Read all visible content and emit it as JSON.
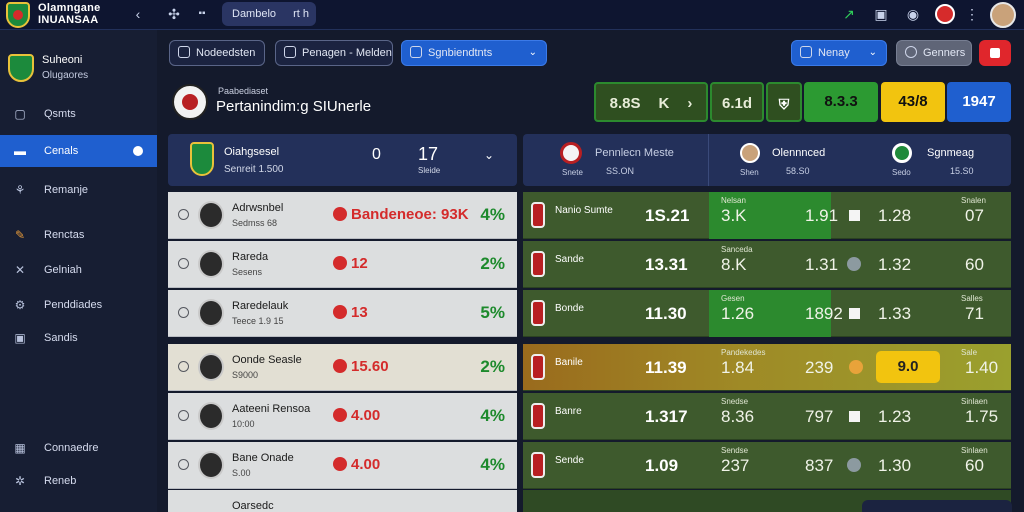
{
  "app": {
    "brand_line1": "Olamngane",
    "brand_line2": "INUANSAA",
    "tab_label": "Dambelo",
    "tab_right": "rt h"
  },
  "sidebar": {
    "team_name": "Suheoni",
    "team_sub": "Olugaores",
    "items": [
      {
        "label": "Qsmts",
        "icon": "square-icon"
      },
      {
        "label": "Cenals",
        "icon": "card-icon",
        "active": true
      },
      {
        "label": "Remanje",
        "icon": "tree-icon"
      },
      {
        "label": "Renctas",
        "icon": "pencil-icon"
      },
      {
        "label": "Gelniah",
        "icon": "cross-icon"
      },
      {
        "label": "Penddiades",
        "icon": "gear-icon"
      },
      {
        "label": "Sandis",
        "icon": "box-icon"
      },
      {
        "label": "Connaedre",
        "icon": "grid-icon"
      },
      {
        "label": "Reneb",
        "icon": "cog-icon"
      }
    ]
  },
  "filters": {
    "f1": "Nodeedsten",
    "f2": "Penagen - Melden",
    "f3": "Sgnbiendtnts",
    "right_select": "Nenay",
    "right_btn": "Genners"
  },
  "header": {
    "small": "Paabediaset",
    "title": "Pertanindim:g SIUnerle",
    "scores": [
      "8.8S",
      "6.1d",
      "8.3.3",
      "43/8",
      "1947"
    ],
    "mid_text": "K"
  },
  "left_header": {
    "team": "Oiahgsesel",
    "team_sub": "Senreit 1.500",
    "score_a": "0",
    "score_b": "17",
    "score_sub": "Sleide"
  },
  "right_header": {
    "teams": [
      {
        "name": "Pennlecn Meste",
        "sub": "SS.ON"
      },
      {
        "name": "Olennnced",
        "sub": "58.S0"
      },
      {
        "name": "Sgnmeag",
        "sub": "15.S0"
      }
    ],
    "labels": [
      "Snete",
      "Shen",
      "Sedo"
    ]
  },
  "rows": [
    {
      "name": "Adrwsnbel",
      "sub": "Sedmss 68",
      "odd": "Bandeneoe: 93K",
      "green": "4%",
      "rteam": "Nanio Sumte",
      "rval": "1S.21",
      "tv1": "Nelsan",
      "v1": "3.K",
      "v2": "1.91",
      "v3": "1.28",
      "v4": "07",
      "tv4": "Snalen",
      "gold": false
    },
    {
      "name": "Rareda",
      "sub": "Sesens",
      "odd": "12",
      "green": "2%",
      "rteam": "Sande",
      "rval": "13.31",
      "tv1": "Sanceda",
      "v1": "8.K",
      "v2": "1.31",
      "v3": "1.32",
      "v4": "60",
      "tv4": "",
      "gold": false
    },
    {
      "name": "Raredelauk",
      "sub": "Teece 1.9 15",
      "odd": "13",
      "green": "5%",
      "rteam": "Bonde",
      "rval": "11.30",
      "tv1": "Gesen",
      "v1": "1.26",
      "v2": "1892",
      "v3": "1.33",
      "v4": "71",
      "tv4": "Salles",
      "gold": false
    },
    {
      "name": "Oonde Seasle",
      "sub": "S9000",
      "odd": "15.60",
      "green": "2%",
      "rteam": "Banile",
      "rval": "11.39",
      "tv1": "Pandekedes",
      "v1": "1.84",
      "v2": "239",
      "v3": "9.0",
      "v4": "1.40",
      "tv4": "Sale",
      "gold": true
    },
    {
      "name": "Aateeni Rensoa",
      "sub": "10:00",
      "odd": "4.00",
      "green": "4%",
      "rteam": "Banre",
      "rval": "1.317",
      "tv1": "Snedse",
      "v1": "8.36",
      "v2": "797",
      "v3": "1.23",
      "v4": "1.75",
      "tv4": "Sinlaen",
      "gold": false
    },
    {
      "name": "Bane Onade",
      "sub": "S.00",
      "odd": "4.00",
      "green": "4%",
      "rteam": "Sende",
      "rval": "1.09",
      "tv1": "Sendse",
      "v1": "237",
      "v2": "837",
      "v3": "1.30",
      "v4": "60",
      "tv4": "Sinlaen",
      "gold": false
    }
  ],
  "partial_row": {
    "name": "Oarsedc"
  },
  "colors": {
    "accent": "#1f5fcf",
    "green": "#2c8a2e",
    "gold": "#f2c40f",
    "red": "#e0262c"
  }
}
